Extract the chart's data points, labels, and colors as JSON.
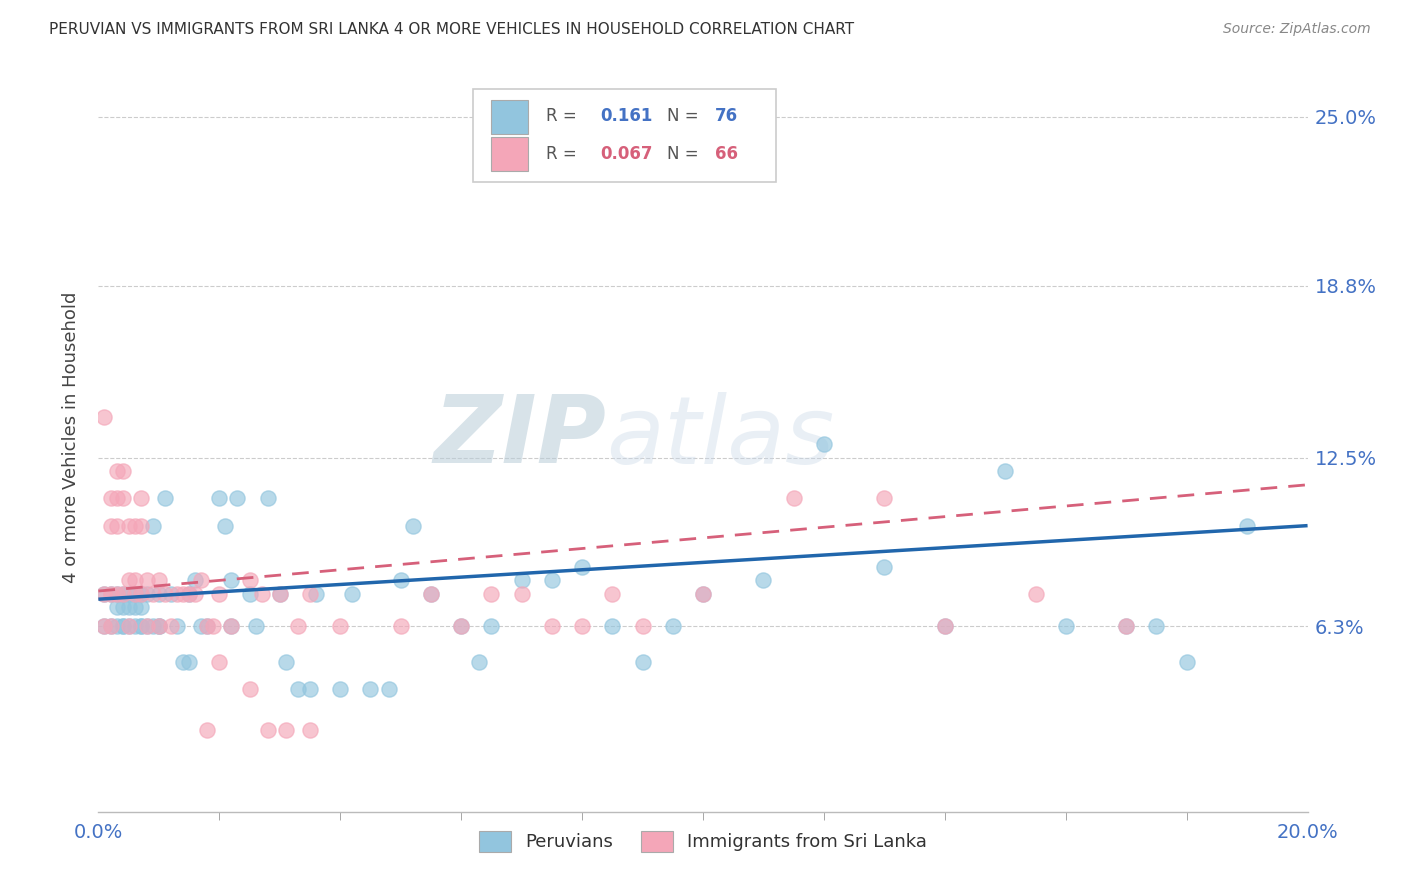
{
  "title": "PERUVIAN VS IMMIGRANTS FROM SRI LANKA 4 OR MORE VEHICLES IN HOUSEHOLD CORRELATION CHART",
  "source": "Source: ZipAtlas.com",
  "ylabel": "4 or more Vehicles in Household",
  "xlim": [
    0.0,
    0.2
  ],
  "ylim": [
    -0.005,
    0.27
  ],
  "ytick_labels": [
    "6.3%",
    "12.5%",
    "18.8%",
    "25.0%"
  ],
  "ytick_vals": [
    0.063,
    0.125,
    0.188,
    0.25
  ],
  "background_color": "#ffffff",
  "watermark": "ZIPatlas",
  "peruvians_color": "#92c5de",
  "srilanka_color": "#f4a6b8",
  "peruvians_line_color": "#2166ac",
  "srilanka_line_color": "#d6607a",
  "peruvians_x": [
    0.001,
    0.001,
    0.002,
    0.002,
    0.003,
    0.003,
    0.003,
    0.004,
    0.004,
    0.004,
    0.004,
    0.005,
    0.005,
    0.005,
    0.006,
    0.006,
    0.006,
    0.007,
    0.007,
    0.007,
    0.007,
    0.008,
    0.008,
    0.009,
    0.009,
    0.01,
    0.01,
    0.01,
    0.011,
    0.012,
    0.013,
    0.014,
    0.015,
    0.015,
    0.016,
    0.017,
    0.018,
    0.02,
    0.021,
    0.022,
    0.022,
    0.023,
    0.025,
    0.026,
    0.028,
    0.03,
    0.031,
    0.033,
    0.035,
    0.036,
    0.04,
    0.042,
    0.045,
    0.048,
    0.05,
    0.052,
    0.055,
    0.06,
    0.063,
    0.065,
    0.07,
    0.075,
    0.08,
    0.085,
    0.09,
    0.095,
    0.1,
    0.11,
    0.12,
    0.13,
    0.14,
    0.15,
    0.16,
    0.17,
    0.175,
    0.18,
    0.19
  ],
  "peruvians_y": [
    0.075,
    0.063,
    0.075,
    0.063,
    0.07,
    0.063,
    0.075,
    0.07,
    0.063,
    0.075,
    0.063,
    0.075,
    0.063,
    0.07,
    0.075,
    0.063,
    0.07,
    0.075,
    0.07,
    0.063,
    0.063,
    0.063,
    0.075,
    0.1,
    0.063,
    0.063,
    0.075,
    0.063,
    0.11,
    0.075,
    0.063,
    0.05,
    0.075,
    0.05,
    0.08,
    0.063,
    0.063,
    0.11,
    0.1,
    0.08,
    0.063,
    0.11,
    0.075,
    0.063,
    0.11,
    0.075,
    0.05,
    0.04,
    0.04,
    0.075,
    0.04,
    0.075,
    0.04,
    0.04,
    0.08,
    0.1,
    0.075,
    0.063,
    0.05,
    0.063,
    0.08,
    0.08,
    0.085,
    0.063,
    0.05,
    0.063,
    0.075,
    0.08,
    0.13,
    0.085,
    0.063,
    0.12,
    0.063,
    0.063,
    0.063,
    0.05,
    0.1
  ],
  "srilanka_x": [
    0.001,
    0.001,
    0.001,
    0.002,
    0.002,
    0.002,
    0.002,
    0.003,
    0.003,
    0.003,
    0.003,
    0.004,
    0.004,
    0.004,
    0.005,
    0.005,
    0.005,
    0.006,
    0.006,
    0.006,
    0.007,
    0.007,
    0.007,
    0.008,
    0.008,
    0.009,
    0.01,
    0.01,
    0.011,
    0.012,
    0.013,
    0.014,
    0.015,
    0.016,
    0.017,
    0.018,
    0.019,
    0.02,
    0.022,
    0.025,
    0.027,
    0.03,
    0.033,
    0.035,
    0.04,
    0.05,
    0.055,
    0.06,
    0.065,
    0.07,
    0.075,
    0.08,
    0.085,
    0.09,
    0.1,
    0.115,
    0.13,
    0.14,
    0.155,
    0.17,
    0.018,
    0.02,
    0.025,
    0.028,
    0.031,
    0.035
  ],
  "srilanka_y": [
    0.075,
    0.14,
    0.063,
    0.11,
    0.1,
    0.075,
    0.063,
    0.12,
    0.11,
    0.1,
    0.075,
    0.12,
    0.11,
    0.075,
    0.1,
    0.08,
    0.063,
    0.1,
    0.075,
    0.08,
    0.1,
    0.11,
    0.075,
    0.08,
    0.063,
    0.075,
    0.08,
    0.063,
    0.075,
    0.063,
    0.075,
    0.075,
    0.075,
    0.075,
    0.08,
    0.063,
    0.063,
    0.075,
    0.063,
    0.08,
    0.075,
    0.075,
    0.063,
    0.075,
    0.063,
    0.063,
    0.075,
    0.063,
    0.075,
    0.075,
    0.063,
    0.063,
    0.075,
    0.063,
    0.075,
    0.11,
    0.11,
    0.063,
    0.075,
    0.063,
    0.025,
    0.05,
    0.04,
    0.025,
    0.025,
    0.025
  ]
}
